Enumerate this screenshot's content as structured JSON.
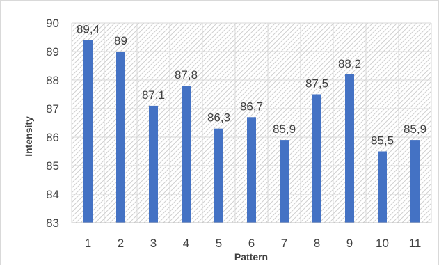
{
  "chart_data": {
    "type": "bar",
    "title": "",
    "xlabel": "Pattern",
    "ylabel": "Intensity",
    "categories": [
      "1",
      "2",
      "3",
      "4",
      "5",
      "6",
      "7",
      "8",
      "9",
      "10",
      "11"
    ],
    "values": [
      89.4,
      89,
      87.1,
      87.8,
      86.3,
      86.7,
      85.9,
      87.5,
      88.2,
      85.5,
      85.9
    ],
    "data_labels": [
      "89,4",
      "89",
      "87,1",
      "87,8",
      "86,3",
      "86,7",
      "85,9",
      "87,5",
      "88,2",
      "85,5",
      "85,9"
    ],
    "ylim": [
      83,
      90
    ],
    "yticks": [
      "83",
      "84",
      "85",
      "86",
      "87",
      "88",
      "89",
      "90"
    ],
    "bar_color": "#4472c4",
    "grid": true,
    "plot_background": "hatched"
  }
}
